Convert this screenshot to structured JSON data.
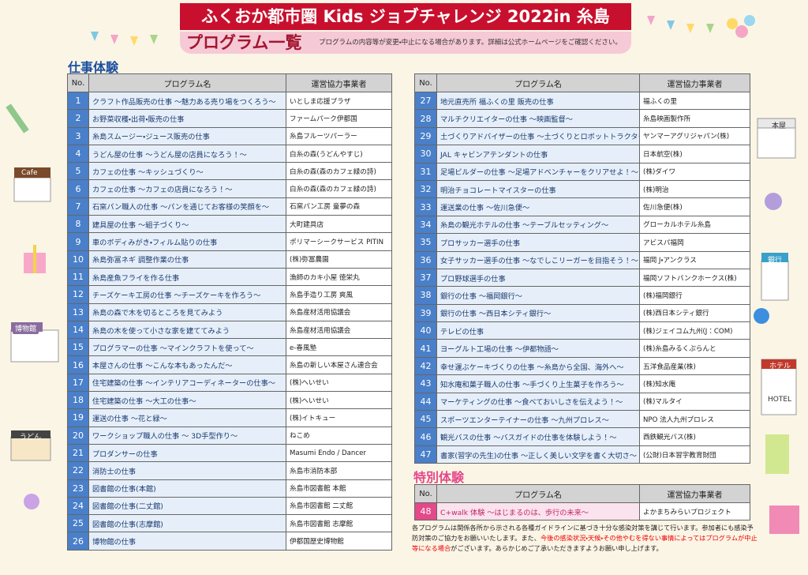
{
  "header": {
    "title": "ふくおか都市圏 Kids ジョブチャレンジ 2022in 糸島",
    "subtitle": "プログラム一覧",
    "note": "プログラムの内容等が変更・中止になる場合があります。詳細は公式ホームページをご確認ください。"
  },
  "jobs": {
    "title": "仕事体験",
    "header": [
      "No.",
      "プログラム名",
      "運営協力事業者"
    ],
    "left": [
      [
        1,
        "クラフト作品販売の仕事 ～魅力ある売り場をつくろう～",
        "いとしま応援プラザ"
      ],
      [
        2,
        "お野菜収穫・出荷・販売の仕事",
        "ファームパーク伊都国"
      ],
      [
        3,
        "糸島スムージー・ジュース販売の仕事",
        "糸島フルーツパーラー"
      ],
      [
        4,
        "うどん屋の仕事 ～うどん屋の店員になろう！～",
        "白糸の森(うどんやすじ)"
      ],
      [
        5,
        "カフェの仕事 ～キッシュづくり～",
        "白糸の森(森のカフェ緑の詩)"
      ],
      [
        6,
        "カフェの仕事 ～カフェの店員になろう！～",
        "白糸の森(森のカフェ緑の詩)"
      ],
      [
        7,
        "石窯パン職人の仕事 ～パンを通じてお客様の笑顔を～",
        "石窯パン工房 童夢の森"
      ],
      [
        8,
        "建具屋の仕事 ～組子づくり～",
        "大町建具店"
      ],
      [
        9,
        "車のボディみがき・フィルム貼りの仕事",
        "ポリマーシークサービス PITIN"
      ],
      [
        10,
        "糸島弥冨ネギ 調整作業の仕事",
        "(株)弥冨農園"
      ],
      [
        11,
        "糸島産魚フライを作る仕事",
        "漁師のカキ小屋 徳栄丸"
      ],
      [
        12,
        "チーズケーキ工房の仕事 ～チーズケーキを作ろう～",
        "糸島手造り工房 爽風"
      ],
      [
        13,
        "糸島の森で木を切るところを見てみよう",
        "糸島産材活用協議会"
      ],
      [
        14,
        "糸島の木を使って小さな家を建ててみよう",
        "糸島産材活用協議会"
      ],
      [
        15,
        "プログラマーの仕事 ～マインクラフトを使って～",
        "e-春風塾"
      ],
      [
        16,
        "本屋さんの仕事 ～こんな本もあったんだ～",
        "糸島の新しい本屋さん連合会"
      ],
      [
        17,
        "住宅建築の仕事 ～インテリアコーディネーターの仕事～",
        "(株)へいせい"
      ],
      [
        18,
        "住宅建築の仕事 ～大工の仕事～",
        "(株)へいせい"
      ],
      [
        19,
        "運送の仕事 ～花と緑～",
        "(株)イトキュー"
      ],
      [
        20,
        "ワークショップ職人の仕事 ～ 3D手型作り～",
        "ねこめ"
      ],
      [
        21,
        "プロダンサーの仕事",
        "Masumi Endo / Dancer"
      ],
      [
        22,
        "消防士の仕事",
        "糸島市消防本部"
      ],
      [
        23,
        "図書館の仕事(本館)",
        "糸島市図書館 本館"
      ],
      [
        24,
        "図書館の仕事(二丈館)",
        "糸島市図書館 二丈館"
      ],
      [
        25,
        "図書館の仕事(志摩館)",
        "糸島市図書館 志摩館"
      ],
      [
        26,
        "博物館の仕事",
        "伊都国歴史博物館"
      ]
    ],
    "right": [
      [
        27,
        "地元直売所 福ふくの里 販売の仕事",
        "福ふくの里"
      ],
      [
        28,
        "マルチクリエイターの仕事 ～映画監督～",
        "糸島映画製作所"
      ],
      [
        29,
        "土づくりアドバイザーの仕事 ～土づくりとロボットトラクター～",
        "ヤンマーアグリジャパン(株)"
      ],
      [
        30,
        "JAL キャビンアテンダントの仕事",
        "日本航空(株)"
      ],
      [
        31,
        "足場ビルダーの仕事 ～足場アドベンチャーをクリアせよ！～",
        "(株)ダイワ"
      ],
      [
        32,
        "明治チョコレートマイスターの仕事",
        "(株)明治"
      ],
      [
        33,
        "運送業の仕事 ～佐川急便～",
        "佐川急便(株)"
      ],
      [
        34,
        "糸島の観光ホテルの仕事 ～テーブルセッティング～",
        "グローカルホテル糸島"
      ],
      [
        35,
        "プロサッカー選手の仕事",
        "アビスパ福岡"
      ],
      [
        36,
        "女子サッカー選手の仕事 ～なでしこリーガーを目指そう！～",
        "福岡 J・アンクラス"
      ],
      [
        37,
        "プロ野球選手の仕事",
        "福岡ソフトバンクホークス(株)"
      ],
      [
        38,
        "銀行の仕事 ～福岡銀行～",
        "(株)福岡銀行"
      ],
      [
        39,
        "銀行の仕事 ～西日本シティ銀行～",
        "(株)西日本シティ銀行"
      ],
      [
        40,
        "テレビの仕事",
        "(株)ジェイコム九州(J：COM)"
      ],
      [
        41,
        "ヨーグルト工場の仕事 ～伊都物語～",
        "(株)糸島みるくぷらんと"
      ],
      [
        42,
        "幸せ運ぶケーキづくりの仕事 ～糸島から全国、海外へ～",
        "五洋食品産業(株)"
      ],
      [
        43,
        "知水庵和菓子職人の仕事 ～手づくり上生菓子を作ろう～",
        "(株)知水庵"
      ],
      [
        44,
        "マーケティングの仕事 ～食べておいしさを伝えよう！～",
        "(株)マルタイ"
      ],
      [
        45,
        "スポーツエンターテイナーの仕事 ～九州プロレス～",
        "NPO 法人九州プロレス"
      ],
      [
        46,
        "観光バスの仕事 ～バスガイドの仕事を体験しよう！～",
        "西鉄観光バス(株)"
      ],
      [
        47,
        "書家(習字の先生)の仕事 ～正しく美しい文字を書く大切さ～",
        "(公財)日本習字教育財団"
      ]
    ]
  },
  "special": {
    "title": "特別体験",
    "header": [
      "No.",
      "プログラム名",
      "運営協力事業者"
    ],
    "rows": [
      [
        48,
        "C+walk 体験 ～はじまるのは、歩行の未来～",
        "よかまちみらいプロジェクト"
      ]
    ]
  },
  "footer": {
    "text1": "各プログラムは関係各所から示される各種ガイドラインに基づき十分な感染対策を講じて行います。参加者にも感染予防対策のご協力をお願いいたします。また、",
    "highlight": "今後の感染状況・天候・その他やむを得ない事情によってはプログラムが中止等になる場合",
    "text2": "がございます。あらかじめご了承いただきますようお願い申し上げます。"
  },
  "illustrations": {
    "cafe": "Cafe",
    "bookstore": "本屋",
    "bank": "銀行",
    "museum": "博物館",
    "hotel": "ホテル",
    "hotel_en": "HOTEL",
    "udon": "うどん"
  }
}
